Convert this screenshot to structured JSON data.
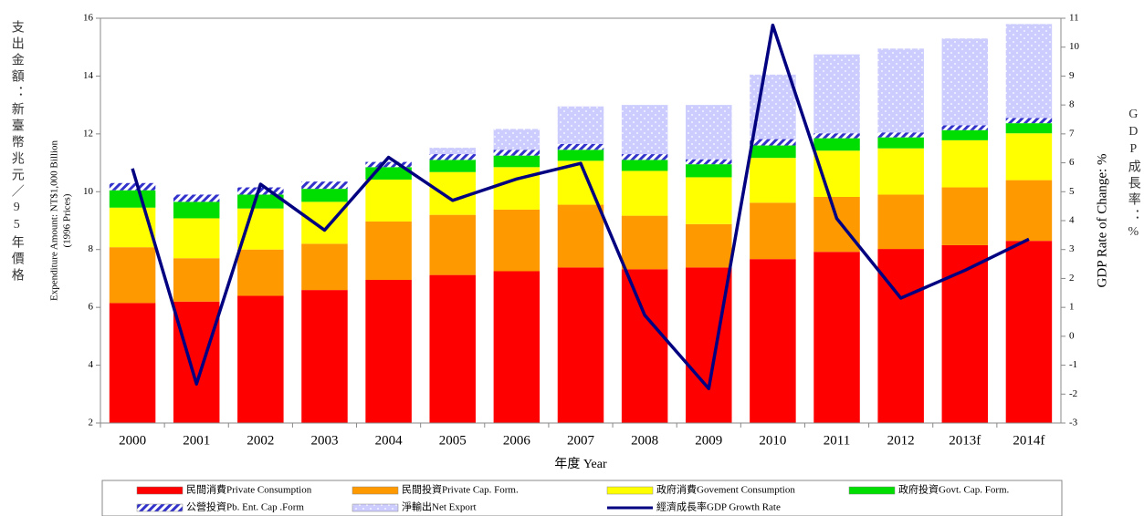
{
  "chart_data": {
    "type": "stacked_bar_line",
    "x_label": "年度 Year",
    "y_label_cn": "支出金額：新臺幣兆元／95年價格",
    "y_label_lines": [
      "Expenditure Amount: NT$1,000 Billion",
      "(1996 Prices)"
    ],
    "y2_label": "GDP Rate of Change: %",
    "y2_label_cn": "GDP成長率：%",
    "categories": [
      "2000",
      "2001",
      "2002",
      "2003",
      "2004",
      "2005",
      "2006",
      "2007",
      "2008",
      "2009",
      "2010",
      "2011",
      "2012",
      "2013f",
      "2014f"
    ],
    "ylim": [
      2,
      16
    ],
    "yticks": [
      2,
      4,
      6,
      8,
      10,
      12,
      14,
      16
    ],
    "y2lim": [
      -3,
      11
    ],
    "y2ticks": [
      -3,
      -2,
      -1,
      0,
      1,
      2,
      3,
      4,
      5,
      6,
      7,
      8,
      9,
      10,
      11
    ],
    "series": [
      {
        "name": "民間消費Private Consumption",
        "color": "#ff0000",
        "values": [
          6.15,
          6.2,
          6.4,
          6.6,
          6.95,
          7.12,
          7.25,
          7.38,
          7.32,
          7.38,
          7.67,
          7.92,
          8.02,
          8.15,
          8.3
        ]
      },
      {
        "name": "民間投資Private Cap. Form.",
        "color": "#ff9900",
        "values": [
          1.93,
          1.5,
          1.6,
          1.6,
          2.02,
          2.08,
          2.13,
          2.17,
          1.85,
          1.5,
          1.95,
          1.9,
          1.88,
          2.0,
          2.1
        ]
      },
      {
        "name": "政府消費Govement Consumption",
        "color": "#ffff00",
        "values": [
          1.37,
          1.38,
          1.42,
          1.45,
          1.45,
          1.48,
          1.47,
          1.52,
          1.55,
          1.62,
          1.55,
          1.6,
          1.6,
          1.63,
          1.62
        ]
      },
      {
        "name": "政府投資Govt. Cap. Form.",
        "color": "#00dd00",
        "values": [
          0.6,
          0.57,
          0.48,
          0.45,
          0.43,
          0.42,
          0.4,
          0.38,
          0.38,
          0.45,
          0.43,
          0.43,
          0.38,
          0.35,
          0.35
        ]
      },
      {
        "name": "公營投資Pb. Ent. Cap .Form",
        "color": "#3333cc",
        "pattern": "hatch",
        "values": [
          0.25,
          0.25,
          0.25,
          0.25,
          0.18,
          0.2,
          0.2,
          0.2,
          0.2,
          0.17,
          0.22,
          0.17,
          0.17,
          0.17,
          0.18
        ]
      },
      {
        "name": "淨輸出Net Export",
        "color": "#ccccff",
        "pattern": "dots",
        "values": [
          0,
          0,
          0,
          0,
          0,
          0.22,
          0.72,
          1.3,
          1.7,
          1.88,
          2.23,
          2.73,
          2.9,
          3.0,
          3.25
        ]
      },
      {
        "name": "經濟成長率GDP Growth Rate",
        "color": "#000080",
        "type": "line",
        "axis": "y2",
        "values": [
          5.8,
          -1.65,
          5.26,
          3.67,
          6.19,
          4.7,
          5.44,
          5.98,
          0.73,
          -1.81,
          10.76,
          4.07,
          1.32,
          2.28,
          3.36
        ]
      }
    ]
  }
}
